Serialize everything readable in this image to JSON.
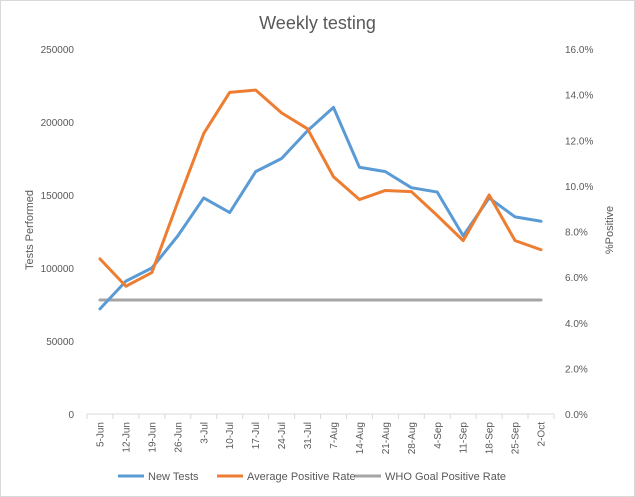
{
  "chart_data": {
    "type": "line",
    "title": "Weekly testing",
    "categories": [
      "5-Jun",
      "12-Jun",
      "19-Jun",
      "26-Jun",
      "3-Jul",
      "10-Jul",
      "17-Jul",
      "24-Jul",
      "31-Jul",
      "7-Aug",
      "14-Aug",
      "21-Aug",
      "28-Aug",
      "4-Sep",
      "11-Sep",
      "18-Sep",
      "25-Sep",
      "2-Oct"
    ],
    "y_left": {
      "label": "Tests Performed",
      "range": [
        0,
        250000
      ],
      "ticks": [
        0,
        50000,
        100000,
        150000,
        200000,
        250000
      ],
      "tick_labels": [
        "0",
        "50000",
        "100000",
        "150000",
        "200000",
        "250000"
      ]
    },
    "y_right": {
      "label": "%Positive",
      "range": [
        0,
        16
      ],
      "ticks": [
        0,
        2,
        4,
        6,
        8,
        10,
        12,
        14,
        16
      ],
      "tick_labels": [
        "0.0%",
        "2.0%",
        "4.0%",
        "6.0%",
        "8.0%",
        "10.0%",
        "12.0%",
        "14.0%",
        "16.0%"
      ]
    },
    "series": [
      {
        "name": "New Tests",
        "axis": "left",
        "color": "#5b9bd5",
        "values": [
          72000,
          91000,
          100000,
          122000,
          148000,
          138000,
          166000,
          175000,
          194000,
          210000,
          169000,
          166000,
          155000,
          152000,
          122000,
          148000,
          135000,
          132000
        ]
      },
      {
        "name": "Average Positive Rate",
        "axis": "right",
        "color": "#ed7d31",
        "values": [
          6.8,
          5.6,
          6.2,
          9.3,
          12.3,
          14.1,
          14.2,
          13.2,
          12.5,
          10.4,
          9.4,
          9.8,
          9.75,
          8.7,
          7.6,
          9.6,
          7.6,
          7.2
        ]
      },
      {
        "name": "WHO Goal Positive Rate",
        "axis": "right",
        "color": "#a5a5a5",
        "values": [
          5,
          5,
          5,
          5,
          5,
          5,
          5,
          5,
          5,
          5,
          5,
          5,
          5,
          5,
          5,
          5,
          5,
          5
        ]
      }
    ],
    "grid": false,
    "legend": "bottom"
  }
}
